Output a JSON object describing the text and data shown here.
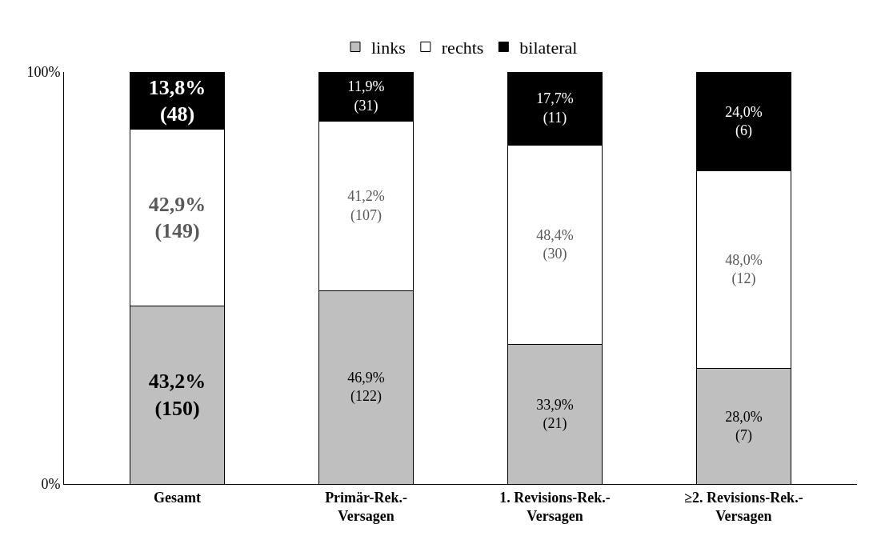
{
  "chart_data": {
    "type": "bar",
    "stacked": true,
    "categories": [
      "Gesamt",
      "Primär-Rek.-\nVersagen",
      "1. Revisions-Rek.-\nVersagen",
      "≥2. Revisions-Rek.-\nVersagen"
    ],
    "series": [
      {
        "name": "links",
        "color": "#bfbfbf",
        "values": [
          43.2,
          46.9,
          33.9,
          28.0
        ],
        "value_labels": [
          "43,2%\n(150)",
          "46,9%\n(122)",
          "33,9%\n(21)",
          "28,0%\n(7)"
        ]
      },
      {
        "name": "rechts",
        "color": "#ffffff",
        "values": [
          42.9,
          41.2,
          48.4,
          48.0
        ],
        "value_labels": [
          "42,9%\n(149)",
          "41,2%\n(107)",
          "48,4%\n(30)",
          "48,0%\n(12)"
        ]
      },
      {
        "name": "bilateral",
        "color": "#000000",
        "values": [
          13.8,
          11.9,
          17.7,
          24.0
        ],
        "value_labels": [
          "13,8%\n(48)",
          "11,9%\n(31)",
          "17,7%\n(11)",
          "24,0%\n(6)"
        ]
      }
    ],
    "ylim": [
      0,
      100
    ],
    "yticks": [
      {
        "value": 0,
        "label": "0%"
      },
      {
        "value": 100,
        "label": "100%"
      }
    ],
    "legend": "top"
  }
}
